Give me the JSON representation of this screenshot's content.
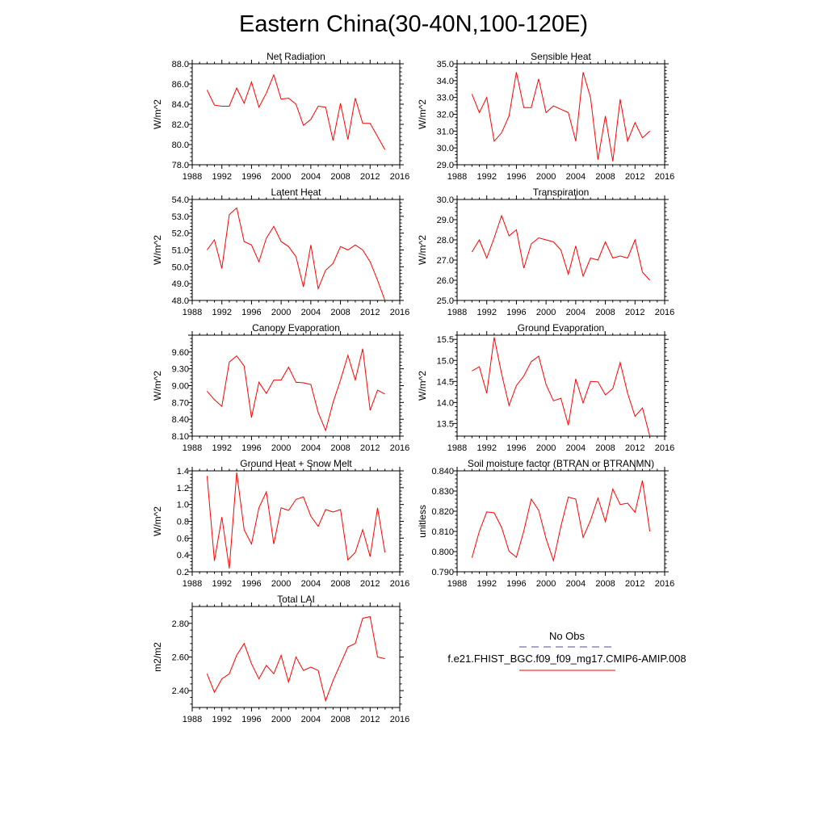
{
  "figure": {
    "title": "Eastern China(30-40N,100-120E)",
    "series_color": "#ff0000",
    "obs_color": "#4b4b9c"
  },
  "legend": {
    "obs_label": "No Obs",
    "model_label": "f.e21.FHIST_BGC.f09_f09_mg17.CMIP6-AMIP.008"
  },
  "chart_data": [
    {
      "type": "line",
      "title": "Net Radiation",
      "ylabel": "W/m^2",
      "xlabel": "",
      "xlim": [
        1988,
        2016
      ],
      "ylim": [
        78,
        88
      ],
      "xticks": [
        1988,
        1992,
        1996,
        2000,
        2004,
        2008,
        2012,
        2016
      ],
      "yticks": [
        78,
        80,
        82,
        84,
        86,
        88
      ],
      "ytick_labels": [
        "78.0",
        "80.0",
        "82.0",
        "84.0",
        "86.0",
        "88.0"
      ],
      "x": [
        1990,
        1991,
        1992,
        1993,
        1994,
        1995,
        1996,
        1997,
        1998,
        1999,
        2000,
        2001,
        2002,
        2003,
        2004,
        2005,
        2006,
        2007,
        2008,
        2009,
        2010,
        2011,
        2012,
        2013,
        2014
      ],
      "values": [
        85.4,
        83.9,
        83.8,
        83.8,
        85.6,
        84.1,
        86.2,
        83.7,
        85.1,
        86.9,
        84.5,
        84.6,
        84.0,
        81.9,
        82.5,
        83.8,
        83.7,
        80.4,
        84.1,
        80.5,
        84.6,
        82.1,
        82.1,
        80.8,
        79.5
      ]
    },
    {
      "type": "line",
      "title": "Sensible Heat",
      "ylabel": "W/m^2",
      "xlabel": "",
      "xlim": [
        1988,
        2016
      ],
      "ylim": [
        29,
        35
      ],
      "xticks": [
        1988,
        1992,
        1996,
        2000,
        2004,
        2008,
        2012,
        2016
      ],
      "yticks": [
        29,
        30,
        31,
        32,
        33,
        34,
        35
      ],
      "ytick_labels": [
        "29.0",
        "30.0",
        "31.0",
        "32.0",
        "33.0",
        "34.0",
        "35.0"
      ],
      "x": [
        1990,
        1991,
        1992,
        1993,
        1994,
        1995,
        1996,
        1997,
        1998,
        1999,
        2000,
        2001,
        2002,
        2003,
        2004,
        2005,
        2006,
        2007,
        2008,
        2009,
        2010,
        2011,
        2012,
        2013,
        2014
      ],
      "values": [
        33.2,
        32.1,
        33.0,
        30.4,
        30.9,
        31.9,
        34.5,
        32.4,
        32.4,
        34.1,
        32.1,
        32.5,
        32.3,
        32.1,
        30.4,
        34.5,
        33.0,
        29.3,
        31.9,
        29.2,
        32.9,
        30.4,
        31.5,
        30.6,
        31.0
      ]
    },
    {
      "type": "line",
      "title": "Latent Heat",
      "ylabel": "W/m^2",
      "xlabel": "",
      "xlim": [
        1988,
        2016
      ],
      "ylim": [
        48,
        54
      ],
      "xticks": [
        1988,
        1992,
        1996,
        2000,
        2004,
        2008,
        2012,
        2016
      ],
      "yticks": [
        48,
        49,
        50,
        51,
        52,
        53,
        54
      ],
      "ytick_labels": [
        "48.0",
        "49.0",
        "50.0",
        "51.0",
        "52.0",
        "53.0",
        "54.0"
      ],
      "x": [
        1990,
        1991,
        1992,
        1993,
        1994,
        1995,
        1996,
        1997,
        1998,
        1999,
        2000,
        2001,
        2002,
        2003,
        2004,
        2005,
        2006,
        2007,
        2008,
        2009,
        2010,
        2011,
        2012,
        2013,
        2014
      ],
      "values": [
        51.0,
        51.6,
        49.9,
        53.1,
        53.5,
        51.5,
        51.3,
        50.3,
        51.7,
        52.4,
        51.5,
        51.2,
        50.6,
        48.8,
        51.3,
        48.7,
        49.8,
        50.2,
        51.2,
        51.0,
        51.3,
        51.0,
        50.3,
        49.2,
        48.0
      ]
    },
    {
      "type": "line",
      "title": "Transpiration",
      "ylabel": "W/m^2",
      "xlabel": "",
      "xlim": [
        1988,
        2016
      ],
      "ylim": [
        25,
        30
      ],
      "xticks": [
        1988,
        1992,
        1996,
        2000,
        2004,
        2008,
        2012,
        2016
      ],
      "yticks": [
        25,
        26,
        27,
        28,
        29,
        30
      ],
      "ytick_labels": [
        "25.0",
        "26.0",
        "27.0",
        "28.0",
        "29.0",
        "30.0"
      ],
      "x": [
        1990,
        1991,
        1992,
        1993,
        1994,
        1995,
        1996,
        1997,
        1998,
        1999,
        2000,
        2001,
        2002,
        2003,
        2004,
        2005,
        2006,
        2007,
        2008,
        2009,
        2010,
        2011,
        2012,
        2013,
        2014
      ],
      "values": [
        27.4,
        28.0,
        27.1,
        28.1,
        29.2,
        28.2,
        28.5,
        26.6,
        27.8,
        28.1,
        28.0,
        27.9,
        27.5,
        26.3,
        27.7,
        26.2,
        27.1,
        27.0,
        27.9,
        27.1,
        27.2,
        27.1,
        28.0,
        26.4,
        26.0
      ]
    },
    {
      "type": "line",
      "title": "Canopy Evaporation",
      "ylabel": "W/m^2",
      "xlabel": "",
      "xlim": [
        1988,
        2016
      ],
      "ylim": [
        8.1,
        9.9
      ],
      "xticks": [
        1988,
        1992,
        1996,
        2000,
        2004,
        2008,
        2012,
        2016
      ],
      "yticks": [
        8.1,
        8.4,
        8.7,
        9.0,
        9.3,
        9.6
      ],
      "ytick_labels": [
        "8.10",
        "8.40",
        "8.70",
        "9.00",
        "9.30",
        "9.60"
      ],
      "x": [
        1990,
        1991,
        1992,
        1993,
        1994,
        1995,
        1996,
        1997,
        1998,
        1999,
        2000,
        2001,
        2002,
        2003,
        2004,
        2005,
        2006,
        2007,
        2008,
        2009,
        2010,
        2011,
        2012,
        2013,
        2014
      ],
      "values": [
        8.9,
        8.75,
        8.63,
        9.42,
        9.53,
        9.35,
        8.43,
        9.06,
        8.86,
        9.1,
        9.1,
        9.33,
        9.06,
        9.05,
        9.02,
        8.52,
        8.2,
        8.7,
        9.1,
        9.54,
        9.1,
        9.66,
        8.56,
        8.92,
        8.85
      ]
    },
    {
      "type": "line",
      "title": "Ground Evaporation",
      "ylabel": "W/m^2",
      "xlabel": "",
      "xlim": [
        1988,
        2016
      ],
      "ylim": [
        13.2,
        15.6
      ],
      "xticks": [
        1988,
        1992,
        1996,
        2000,
        2004,
        2008,
        2012,
        2016
      ],
      "yticks": [
        13.5,
        14.0,
        14.5,
        15.0,
        15.5
      ],
      "ytick_labels": [
        "13.5",
        "14.0",
        "14.5",
        "15.0",
        "15.5"
      ],
      "x": [
        1990,
        1991,
        1992,
        1993,
        1994,
        1995,
        1996,
        1997,
        1998,
        1999,
        2000,
        2001,
        2002,
        2003,
        2004,
        2005,
        2006,
        2007,
        2008,
        2009,
        2010,
        2011,
        2012,
        2013,
        2014
      ],
      "values": [
        14.75,
        14.85,
        14.22,
        15.55,
        14.68,
        13.93,
        14.4,
        14.63,
        14.97,
        15.1,
        14.43,
        14.04,
        14.1,
        13.46,
        14.56,
        13.99,
        14.5,
        14.49,
        14.18,
        14.33,
        14.95,
        14.22,
        13.67,
        13.87,
        13.2
      ]
    },
    {
      "type": "line",
      "title": "Ground Heat + Snow Melt",
      "ylabel": "W/m^2",
      "xlabel": "",
      "xlim": [
        1988,
        2016
      ],
      "ylim": [
        0.2,
        1.4
      ],
      "xticks": [
        1988,
        1992,
        1996,
        2000,
        2004,
        2008,
        2012,
        2016
      ],
      "yticks": [
        0.2,
        0.4,
        0.6,
        0.8,
        1.0,
        1.2,
        1.4
      ],
      "ytick_labels": [
        "0.2",
        "0.4",
        "0.6",
        "0.8",
        "1.0",
        "1.2",
        "1.4"
      ],
      "x": [
        1990,
        1991,
        1992,
        1993,
        1994,
        1995,
        1996,
        1997,
        1998,
        1999,
        2000,
        2001,
        2002,
        2003,
        2004,
        2005,
        2006,
        2007,
        2008,
        2009,
        2010,
        2011,
        2012,
        2013,
        2014
      ],
      "values": [
        1.34,
        0.33,
        0.85,
        0.24,
        1.38,
        0.7,
        0.53,
        0.96,
        1.15,
        0.53,
        0.96,
        0.93,
        1.06,
        1.09,
        0.86,
        0.74,
        0.94,
        0.91,
        0.94,
        0.34,
        0.43,
        0.7,
        0.38,
        0.96,
        0.43
      ]
    },
    {
      "type": "line",
      "title": "Soil moisture factor (BTRAN or BTRANMN)",
      "ylabel": "unitless",
      "xlabel": "",
      "xlim": [
        1988,
        2016
      ],
      "ylim": [
        0.79,
        0.84
      ],
      "xticks": [
        1988,
        1992,
        1996,
        2000,
        2004,
        2008,
        2012,
        2016
      ],
      "yticks": [
        0.79,
        0.8,
        0.81,
        0.82,
        0.83,
        0.84
      ],
      "ytick_labels": [
        "0.790",
        "0.800",
        "0.810",
        "0.820",
        "0.830",
        "0.840"
      ],
      "x": [
        1990,
        1991,
        1992,
        1993,
        1994,
        1995,
        1996,
        1997,
        1998,
        1999,
        2000,
        2001,
        2002,
        2003,
        2004,
        2005,
        2006,
        2007,
        2008,
        2009,
        2010,
        2011,
        2012,
        2013,
        2014
      ],
      "values": [
        0.797,
        0.81,
        0.8197,
        0.8192,
        0.812,
        0.8002,
        0.7972,
        0.8102,
        0.826,
        0.8205,
        0.8065,
        0.7955,
        0.8125,
        0.827,
        0.826,
        0.807,
        0.8155,
        0.8265,
        0.8148,
        0.831,
        0.8233,
        0.824,
        0.8195,
        0.8352,
        0.81
      ]
    },
    {
      "type": "line",
      "title": "Total LAI",
      "ylabel": "m2/m2",
      "xlabel": "",
      "xlim": [
        1988,
        2016
      ],
      "ylim": [
        2.3,
        2.9
      ],
      "xticks": [
        1988,
        1992,
        1996,
        2000,
        2004,
        2008,
        2012,
        2016
      ],
      "yticks": [
        2.4,
        2.6,
        2.8
      ],
      "ytick_labels": [
        "2.40",
        "2.60",
        "2.80"
      ],
      "x": [
        1990,
        1991,
        1992,
        1993,
        1994,
        1995,
        1996,
        1997,
        1998,
        1999,
        2000,
        2001,
        2002,
        2003,
        2004,
        2005,
        2006,
        2007,
        2008,
        2009,
        2010,
        2011,
        2012,
        2013,
        2014
      ],
      "values": [
        2.5,
        2.39,
        2.47,
        2.5,
        2.61,
        2.68,
        2.56,
        2.47,
        2.55,
        2.5,
        2.61,
        2.45,
        2.6,
        2.52,
        2.54,
        2.52,
        2.34,
        2.46,
        2.56,
        2.66,
        2.68,
        2.83,
        2.84,
        2.6,
        2.59
      ]
    }
  ]
}
